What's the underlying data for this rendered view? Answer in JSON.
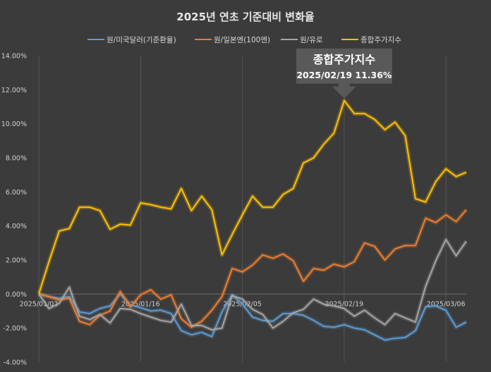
{
  "chart_data": {
    "type": "line",
    "title": "2025년 연초 기준대비 변화율",
    "xlabel": "",
    "ylabel": "",
    "ylim": [
      -0.04,
      0.14
    ],
    "y_ticks": [
      -0.04,
      -0.02,
      0.0,
      0.02,
      0.04,
      0.06,
      0.08,
      0.1,
      0.12,
      0.14
    ],
    "y_tick_labels": [
      "-4.00%",
      "-2.00%",
      "0.00%",
      "2.00%",
      "4.00%",
      "6.00%",
      "8.00%",
      "10.00%",
      "12.00%",
      "14.00%"
    ],
    "x_tick_labels": [
      {
        "index": 0,
        "label": "2025/01/02"
      },
      {
        "index": 10,
        "label": "2025/01/16"
      },
      {
        "index": 20,
        "label": "2025/02/05"
      },
      {
        "index": 30,
        "label": "2025/02/19"
      },
      {
        "index": 40,
        "label": "2025/03/06"
      }
    ],
    "grid": "vertical",
    "legend_position": "top",
    "series": [
      {
        "name": "원/미국달러(기준환율)",
        "color": "#5b9bd5",
        "values": [
          0.0,
          -0.0015,
          -0.0025,
          -0.0015,
          -0.0105,
          -0.0115,
          -0.0085,
          -0.007,
          0.0,
          -0.0065,
          -0.008,
          -0.01,
          -0.0095,
          -0.0115,
          -0.0215,
          -0.024,
          -0.0225,
          -0.025,
          -0.0105,
          -0.0005,
          -0.006,
          -0.0135,
          -0.0155,
          -0.016,
          -0.0115,
          -0.0115,
          -0.0125,
          -0.0155,
          -0.019,
          -0.0195,
          -0.018,
          -0.02,
          -0.021,
          -0.024,
          -0.027,
          -0.026,
          -0.0255,
          -0.0215,
          -0.0075,
          -0.007,
          -0.0095,
          -0.0195,
          -0.0165
        ]
      },
      {
        "name": "원/일본엔(100엔)",
        "color": "#ed7d31",
        "values": [
          0.0,
          -0.0015,
          -0.0035,
          -0.0025,
          -0.016,
          -0.018,
          -0.0125,
          -0.01,
          0.0015,
          -0.0075,
          -0.0005,
          0.0025,
          -0.003,
          -0.0005,
          -0.0145,
          -0.0195,
          -0.016,
          -0.0095,
          -0.0015,
          0.015,
          0.013,
          0.017,
          0.023,
          0.021,
          0.0235,
          0.0195,
          0.0075,
          0.015,
          0.014,
          0.0175,
          0.016,
          0.019,
          0.03,
          0.028,
          0.02,
          0.0265,
          0.0285,
          0.0285,
          0.0445,
          0.042,
          0.0465,
          0.0425,
          0.0495
        ]
      },
      {
        "name": "원/유로",
        "color": "#a5a5a5",
        "values": [
          0.0,
          -0.0085,
          -0.0055,
          0.004,
          -0.013,
          -0.015,
          -0.012,
          -0.017,
          -0.0085,
          -0.009,
          -0.0115,
          -0.0135,
          -0.0155,
          -0.0165,
          -0.006,
          -0.0185,
          -0.0185,
          -0.021,
          -0.02,
          -0.001,
          -0.003,
          -0.009,
          -0.012,
          -0.02,
          -0.016,
          -0.011,
          -0.009,
          -0.003,
          -0.006,
          -0.007,
          -0.0085,
          -0.013,
          -0.0095,
          -0.014,
          -0.018,
          -0.0115,
          -0.014,
          -0.0165,
          0.0045,
          0.0195,
          0.032,
          0.0225,
          0.031
        ]
      },
      {
        "name": "종합주가지수",
        "color": "#ffc000",
        "values": [
          0.0,
          0.019,
          0.037,
          0.0385,
          0.051,
          0.051,
          0.049,
          0.038,
          0.041,
          0.0405,
          0.0535,
          0.0525,
          0.051,
          0.05,
          0.062,
          0.049,
          0.0575,
          0.0495,
          0.023,
          0.035,
          0.0465,
          0.0575,
          0.051,
          0.051,
          0.0585,
          0.062,
          0.077,
          0.08,
          0.088,
          0.0945,
          0.1136,
          0.106,
          0.106,
          0.1025,
          0.0965,
          0.101,
          0.093,
          0.056,
          0.054,
          0.066,
          0.0735,
          0.069,
          0.0715
        ]
      }
    ],
    "annotation": {
      "series_index": 3,
      "point_index": 30,
      "title": "종합주가지수",
      "text": "2025/02/19 11.36%"
    }
  }
}
